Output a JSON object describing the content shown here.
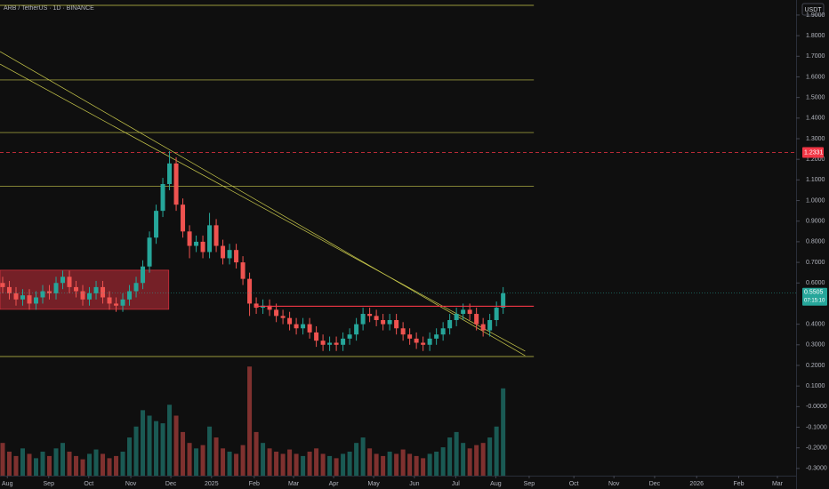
{
  "chart_data": {
    "type": "candlestick",
    "title": "ARB / TetherUS · 1D · BINANCE",
    "currency": "USDT",
    "up_color": "#26a69a",
    "down_color": "#ef5350",
    "line_color": "#c8c84b",
    "level_color": "#f23645",
    "xlim": [
      -0.4,
      118.9
    ],
    "ylim": [
      -0.335,
      1.973
    ],
    "volume_lim": [
      0,
      110
    ],
    "xticks": [
      {
        "value": 0.7,
        "label": "Aug"
      },
      {
        "value": 6.9,
        "label": "Sep"
      },
      {
        "value": 12.9,
        "label": "Oct"
      },
      {
        "value": 19.2,
        "label": "Nov"
      },
      {
        "value": 25.2,
        "label": "Dec"
      },
      {
        "value": 31.3,
        "label": "2025"
      },
      {
        "value": 37.7,
        "label": "Feb"
      },
      {
        "value": 43.6,
        "label": "Mar"
      },
      {
        "value": 49.6,
        "label": "Apr"
      },
      {
        "value": 55.6,
        "label": "May"
      },
      {
        "value": 61.7,
        "label": "Jun"
      },
      {
        "value": 67.9,
        "label": "Jul"
      },
      {
        "value": 73.9,
        "label": "Aug"
      },
      {
        "value": 78.9,
        "label": "Sep"
      },
      {
        "value": 85.6,
        "label": "Oct"
      },
      {
        "value": 91.6,
        "label": "Nov"
      },
      {
        "value": 97.7,
        "label": "Dec"
      },
      {
        "value": 104,
        "label": "2026"
      },
      {
        "value": 110.3,
        "label": "Feb"
      },
      {
        "value": 116.1,
        "label": "Mar"
      }
    ],
    "yticks": [
      {
        "value": 1.9,
        "label": "1.9000"
      },
      {
        "value": 1.8,
        "label": "1.8000"
      },
      {
        "value": 1.7,
        "label": "1.7000"
      },
      {
        "value": 1.6,
        "label": "1.6000"
      },
      {
        "value": 1.5,
        "label": "1.5000"
      },
      {
        "value": 1.4,
        "label": "1.4000"
      },
      {
        "value": 1.3,
        "label": "1.3000"
      },
      {
        "value": 1.2,
        "label": "1.2000"
      },
      {
        "value": 1.1,
        "label": "1.1000"
      },
      {
        "value": 1,
        "label": "1.0000"
      },
      {
        "value": 0.9,
        "label": "0.9000"
      },
      {
        "value": 0.8,
        "label": "0.8000"
      },
      {
        "value": 0.7,
        "label": "0.7000"
      },
      {
        "value": 0.6,
        "label": "0.6000"
      },
      {
        "value": 0.4,
        "label": "0.4000"
      },
      {
        "value": 0.3,
        "label": "0.3000"
      },
      {
        "value": 0.2,
        "label": "0.2000"
      },
      {
        "value": 0.1,
        "label": "0.1000"
      },
      {
        "value": 0,
        "label": "-0.0000"
      },
      {
        "value": -0.1,
        "label": "-0.1000"
      },
      {
        "value": -0.2,
        "label": "-0.2000"
      },
      {
        "value": -0.3,
        "label": "-0.3000"
      }
    ],
    "open": [
      0.6,
      0.58,
      0.55,
      0.52,
      0.54,
      0.5,
      0.53,
      0.56,
      0.55,
      0.6,
      0.63,
      0.58,
      0.56,
      0.52,
      0.55,
      0.58,
      0.53,
      0.5,
      0.49,
      0.52,
      0.56,
      0.6,
      0.68,
      0.82,
      0.95,
      1.08,
      1.18,
      0.98,
      0.85,
      0.78,
      0.8,
      0.75,
      0.88,
      0.78,
      0.72,
      0.76,
      0.7,
      0.62,
      0.5,
      0.48,
      0.49,
      0.47,
      0.44,
      0.43,
      0.4,
      0.38,
      0.4,
      0.36,
      0.32,
      0.3,
      0.31,
      0.3,
      0.33,
      0.35,
      0.4,
      0.45,
      0.44,
      0.42,
      0.4,
      0.42,
      0.38,
      0.35,
      0.33,
      0.31,
      0.3,
      0.33,
      0.35,
      0.38,
      0.42,
      0.45,
      0.47,
      0.45,
      0.4,
      0.37,
      0.42,
      0.48
    ],
    "high": [
      0.63,
      0.61,
      0.58,
      0.57,
      0.57,
      0.56,
      0.59,
      0.59,
      0.63,
      0.66,
      0.66,
      0.61,
      0.59,
      0.58,
      0.61,
      0.61,
      0.56,
      0.53,
      0.55,
      0.59,
      0.63,
      0.71,
      0.85,
      0.98,
      1.11,
      1.24,
      1.21,
      1.01,
      0.88,
      0.83,
      0.83,
      0.94,
      0.91,
      0.81,
      0.79,
      0.79,
      0.73,
      0.65,
      0.53,
      0.52,
      0.52,
      0.5,
      0.47,
      0.46,
      0.43,
      0.43,
      0.43,
      0.39,
      0.35,
      0.34,
      0.34,
      0.36,
      0.38,
      0.43,
      0.48,
      0.48,
      0.47,
      0.45,
      0.45,
      0.45,
      0.41,
      0.38,
      0.36,
      0.34,
      0.36,
      0.38,
      0.41,
      0.45,
      0.48,
      0.5,
      0.5,
      0.48,
      0.43,
      0.45,
      0.51,
      0.58
    ],
    "low": [
      0.55,
      0.52,
      0.49,
      0.49,
      0.47,
      0.47,
      0.5,
      0.52,
      0.52,
      0.57,
      0.55,
      0.53,
      0.49,
      0.49,
      0.52,
      0.5,
      0.47,
      0.46,
      0.46,
      0.49,
      0.53,
      0.57,
      0.65,
      0.79,
      0.92,
      1.05,
      0.95,
      0.82,
      0.72,
      0.75,
      0.72,
      0.72,
      0.75,
      0.69,
      0.69,
      0.67,
      0.59,
      0.44,
      0.45,
      0.45,
      0.44,
      0.41,
      0.4,
      0.37,
      0.35,
      0.35,
      0.33,
      0.29,
      0.27,
      0.27,
      0.27,
      0.27,
      0.3,
      0.32,
      0.37,
      0.41,
      0.39,
      0.37,
      0.37,
      0.35,
      0.32,
      0.3,
      0.28,
      0.27,
      0.27,
      0.3,
      0.32,
      0.35,
      0.39,
      0.42,
      0.42,
      0.37,
      0.34,
      0.34,
      0.39,
      0.45
    ],
    "close": [
      0.58,
      0.55,
      0.52,
      0.54,
      0.5,
      0.53,
      0.56,
      0.55,
      0.6,
      0.63,
      0.58,
      0.56,
      0.52,
      0.55,
      0.58,
      0.53,
      0.5,
      0.49,
      0.52,
      0.56,
      0.6,
      0.68,
      0.82,
      0.95,
      1.08,
      1.18,
      0.98,
      0.85,
      0.78,
      0.8,
      0.75,
      0.88,
      0.78,
      0.72,
      0.76,
      0.7,
      0.62,
      0.5,
      0.48,
      0.49,
      0.47,
      0.44,
      0.43,
      0.4,
      0.38,
      0.4,
      0.36,
      0.32,
      0.3,
      0.31,
      0.3,
      0.33,
      0.35,
      0.4,
      0.45,
      0.44,
      0.42,
      0.4,
      0.42,
      0.38,
      0.35,
      0.33,
      0.31,
      0.3,
      0.33,
      0.35,
      0.38,
      0.42,
      0.45,
      0.47,
      0.45,
      0.4,
      0.37,
      0.42,
      0.48,
      0.55
    ],
    "volume": [
      30,
      22,
      18,
      25,
      20,
      16,
      22,
      18,
      25,
      30,
      22,
      18,
      15,
      20,
      24,
      20,
      16,
      18,
      22,
      35,
      45,
      60,
      55,
      50,
      48,
      65,
      55,
      40,
      30,
      25,
      28,
      45,
      35,
      25,
      22,
      20,
      28,
      100,
      40,
      30,
      25,
      22,
      20,
      24,
      20,
      18,
      22,
      25,
      20,
      18,
      16,
      20,
      22,
      30,
      35,
      25,
      20,
      18,
      22,
      20,
      24,
      20,
      18,
      16,
      20,
      22,
      26,
      35,
      40,
      30,
      25,
      28,
      30,
      35,
      45,
      80
    ],
    "levels": [
      1.947,
      1.585,
      1.33,
      1.07,
      0.243
    ],
    "alert_level": 1.2331,
    "resistance": {
      "x": [
        37.7,
        79.6
      ],
      "y": 0.487
    },
    "zone": {
      "x": [
        -0.4,
        24.9
      ],
      "y": [
        0.472,
        0.662
      ]
    },
    "trendlines": [
      {
        "x": [
          -0.4,
          78.3
        ],
        "y": [
          1.723,
          0.247
        ]
      },
      {
        "x": [
          -0.4,
          78.3
        ],
        "y": [
          1.662,
          0.269
        ]
      }
    ],
    "last_price": 0.5505,
    "countdown": "07:15:10"
  }
}
